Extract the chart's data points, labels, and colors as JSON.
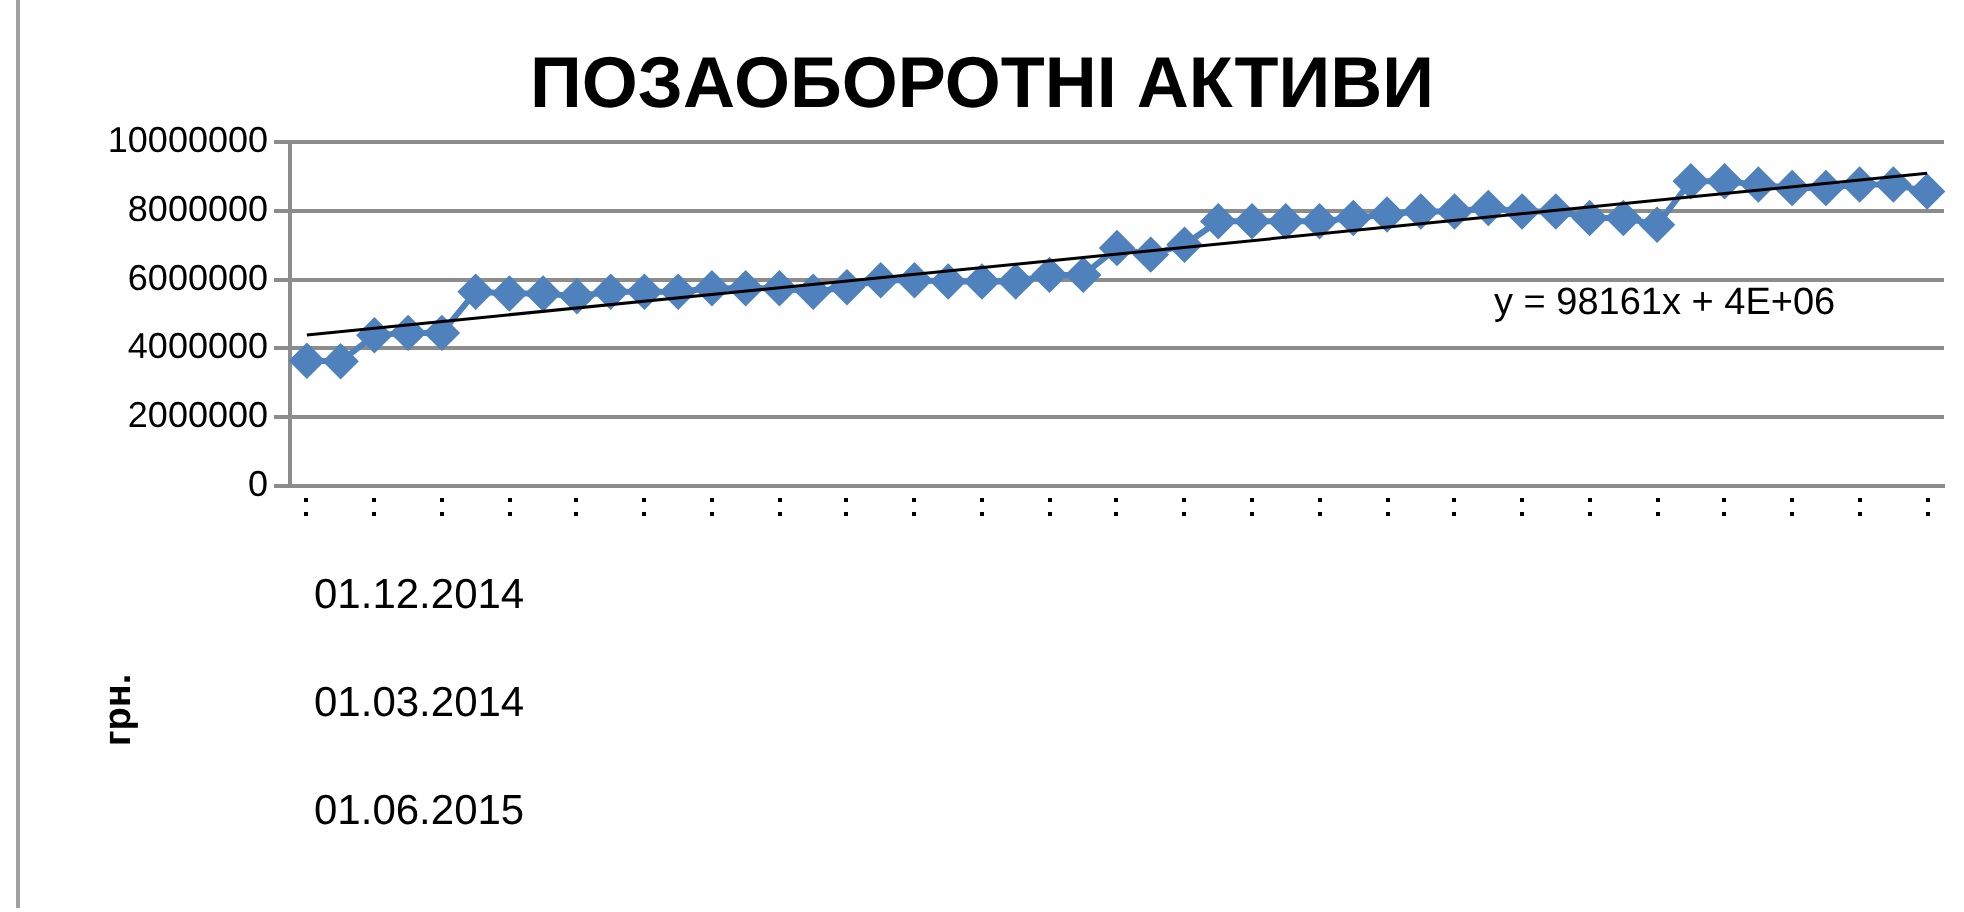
{
  "chart_data": {
    "type": "line",
    "title": "ПОЗАОБОРОТНІ АКТИВИ",
    "ylabel": "грн.",
    "categories": [
      null,
      null,
      null,
      null,
      null,
      null,
      null,
      null,
      null,
      null,
      null,
      null,
      null,
      null,
      null,
      null,
      null,
      null,
      null,
      null,
      null,
      null,
      null,
      null,
      null,
      null,
      null,
      null,
      null,
      null,
      null,
      null,
      null,
      null,
      null,
      null,
      null,
      null,
      null,
      null,
      null,
      null,
      null,
      null,
      null,
      null,
      null,
      null,
      null
    ],
    "series": [
      {
        "color": "#4f81bd",
        "values": [
          3640000,
          3620000,
          4380000,
          4450000,
          4450000,
          5650000,
          5600000,
          5600000,
          5520000,
          5650000,
          5650000,
          5650000,
          5750000,
          5750000,
          5750000,
          5650000,
          5780000,
          5980000,
          5980000,
          5950000,
          5950000,
          5950000,
          6140000,
          6140000,
          6920000,
          6730000,
          7020000,
          7700000,
          7700000,
          7700000,
          7700000,
          7800000,
          7900000,
          7990000,
          7990000,
          8090000,
          7990000,
          7990000,
          7800000,
          7800000,
          7600000,
          8870000,
          8870000,
          8770000,
          8670000,
          8670000,
          8770000,
          8770000,
          8570000
        ]
      },
      {
        "type": "line",
        "color": "#000000",
        "marker": "none",
        "values": [
          4390000,
          null,
          null,
          null,
          null,
          null,
          null,
          null,
          null,
          null,
          null,
          null,
          null,
          null,
          null,
          null,
          null,
          null,
          null,
          null,
          null,
          null,
          null,
          null,
          null,
          null,
          null,
          null,
          null,
          null,
          null,
          null,
          null,
          null,
          null,
          null,
          null,
          null,
          null,
          null,
          null,
          null,
          null,
          null,
          null,
          null,
          null,
          null,
          9100000
        ]
      }
    ],
    "ylim": [
      0,
      10000000
    ],
    "yticks": [
      0,
      2000000,
      4000000,
      6000000,
      8000000,
      10000000
    ],
    "grid": "y",
    "legend": false,
    "marker": "diamond",
    "annotations": [
      "y = 98161x + 4E+06",
      "01.12.2014",
      "01.03.2014",
      "01.06.2015"
    ]
  }
}
